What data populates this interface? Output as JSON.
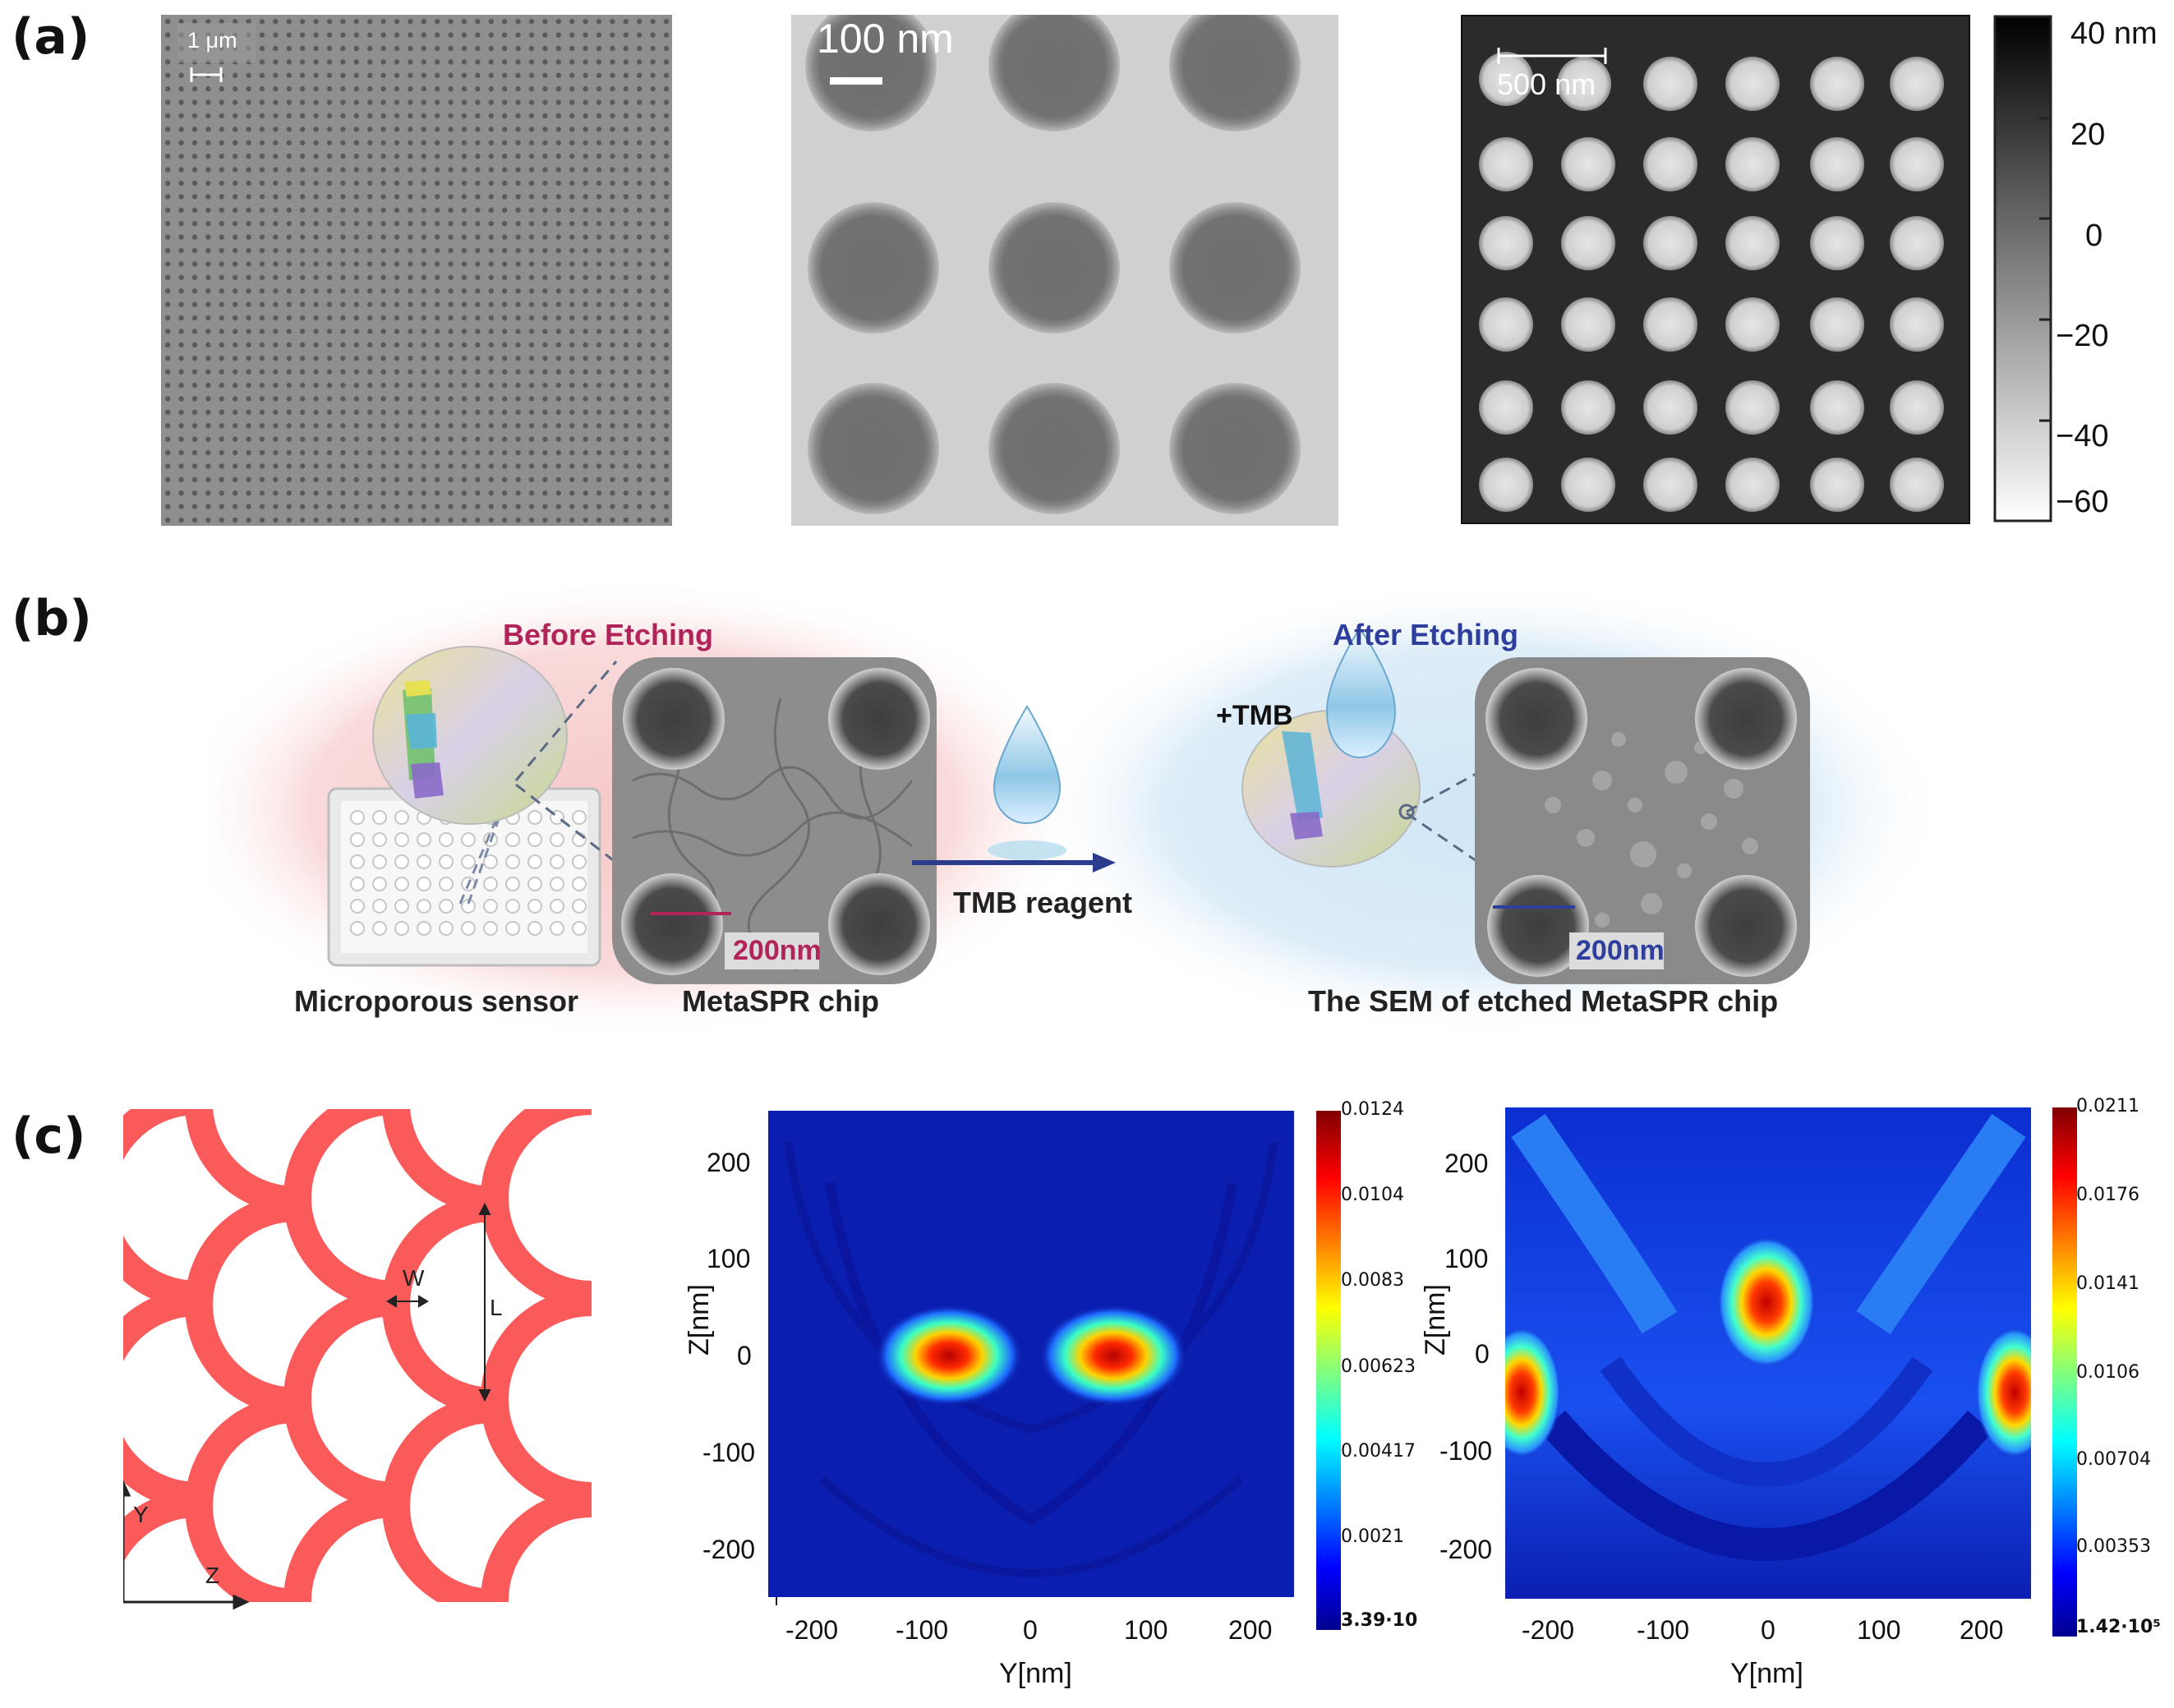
{
  "panels": {
    "a": {
      "label": "(a)",
      "sem_left": {
        "scale_text": "1 μm"
      },
      "sem_mid": {
        "scale_text": "100 nm"
      },
      "afm": {
        "scale_text": "500 nm",
        "colorbar_ticks": [
          "40 nm",
          "20",
          "0",
          "−20",
          "−40",
          "−60"
        ]
      }
    },
    "b": {
      "label": "(b)",
      "before_title": "Before Etching",
      "after_title": "After Etching",
      "before_scale": "200nm",
      "after_scale": "200nm",
      "drop_label": "+TMB",
      "arrow_label": "TMB reagent",
      "cap_sensor": "Microporous sensor",
      "cap_chip": "MetaSPR chip",
      "cap_sem": "The SEM of etched MetaSPR chip",
      "colors": {
        "before": "#b0245a",
        "after": "#2e3e9c",
        "arrow": "#2b3c8f"
      }
    },
    "c": {
      "label": "(c)",
      "schematic": {
        "w_label": "W",
        "l_label": "L",
        "axis_y": "Y",
        "axis_z": "Z",
        "shape_color": "#fb5a5a"
      },
      "map1": {
        "xlabel": "Y[nm]",
        "ylabel": "Z[nm]",
        "xticks": [
          "-200",
          "-100",
          "0",
          "100",
          "200"
        ],
        "yticks": [
          "200",
          "100",
          "0",
          "-100",
          "-200"
        ],
        "colorbar_ticks": [
          "0.0124",
          "0.0104",
          "0.0083",
          "0.00623",
          "0.00417",
          "0.0021",
          "3.39·10"
        ]
      },
      "map2": {
        "xlabel": "Y[nm]",
        "ylabel": "Z[nm]",
        "xticks": [
          "-200",
          "-100",
          "0",
          "100",
          "200"
        ],
        "yticks": [
          "200",
          "100",
          "0",
          "-100",
          "-200"
        ],
        "colorbar_ticks": [
          "0.0211",
          "0.0176",
          "0.0141",
          "0.0106",
          "0.00704",
          "0.00353",
          "1.42·10⁵"
        ]
      }
    }
  }
}
